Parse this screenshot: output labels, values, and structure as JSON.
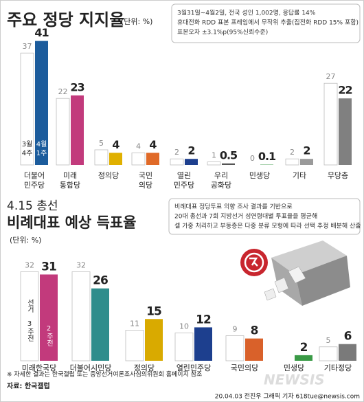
{
  "chart_data": [
    {
      "type": "bar",
      "title": "주요 정당 지지율",
      "unit": "(단위: %)",
      "note": [
        "3월31일~4월2일, 전국 성인 1,002명, 응답률 14%",
        "휴대전화 RDD 표본 프레임에서 무작위 추출(집전화 RDD 15% 포함)",
        "표본오차 ±3.1%p(95%신뢰수준)"
      ],
      "categories": [
        "더불어 민주당",
        "미래 통합당",
        "정의당",
        "국민 의당",
        "열린 민주당",
        "우리 공화당",
        "민생당",
        "기타",
        "무당층"
      ],
      "series": [
        {
          "name": "3월 4주",
          "color": "#ffffff",
          "values": [
            37,
            22,
            5,
            4,
            2,
            1,
            0,
            2,
            27
          ]
        },
        {
          "name": "4월 1주",
          "colors": [
            "#1c5c9c",
            "#c23a7c",
            "#e0b000",
            "#e06a28",
            "#1d3f8e",
            "#555555",
            "#3a9a46",
            "#9a9a9a",
            "#808080"
          ],
          "values": [
            41,
            23,
            4,
            4,
            2,
            0.5,
            0.1,
            2,
            22
          ]
        }
      ]
    },
    {
      "type": "bar",
      "subtitle": "4.15 총선",
      "title": "비례대표 예상 득표율",
      "unit": "(단위: %)",
      "note": [
        "비례대표 정당투표 의향 조사 결과를 기반으로",
        "20대 총선과 7회 지방선거 성연령대별 투표율을 평균해",
        "셀 가중 처리하고 부동층은 다중 분류 모형에 따라 선택 추정 배분해 산출"
      ],
      "categories": [
        "미래한국당",
        "더불어시민당",
        "정의당",
        "열린민주당",
        "국민의당",
        "민생당",
        "기타정당"
      ],
      "series": [
        {
          "name": "선거 3주전",
          "color": "#ffffff",
          "values": [
            32,
            32,
            11,
            10,
            9,
            null,
            5
          ]
        },
        {
          "name": "2주전",
          "colors": [
            "#c23a7c",
            "#2f8d8c",
            "#d9aa00",
            "#1d3f8e",
            "#d9612a",
            "#3a9a46",
            "#7a7a7a"
          ],
          "values": [
            31,
            26,
            15,
            12,
            8,
            2,
            6
          ]
        }
      ]
    }
  ],
  "footer": {
    "note": "※ 자세한 결과는 한국갤럽 또는 중앙선거여론조사심의위원회 홈페이지 참조",
    "source": "자료: 한국갤럽",
    "credit": "20.04.03 전진우 그래픽 기자 618tue@newsis.com",
    "logo": "NEWSIS"
  }
}
